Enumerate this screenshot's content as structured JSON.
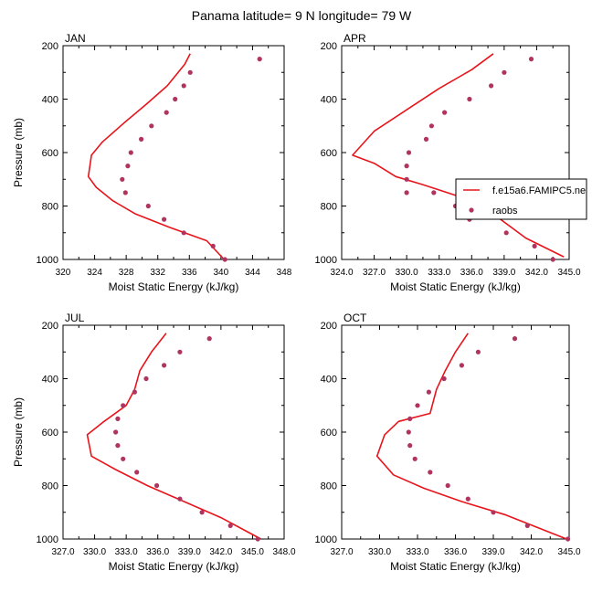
{
  "figure": {
    "title": "Panama  latitude= 9 N longitude= 79 W"
  },
  "legend": {
    "entries": [
      {
        "label": "f.e15a6.FAMIPC5.ne",
        "kind": "line",
        "color": "#e8141b"
      },
      {
        "label": "raobs",
        "kind": "marker",
        "color": "#b0345f"
      }
    ]
  },
  "chart_data": [
    {
      "type": "line",
      "panel_label": "JAN",
      "xlabel": "Moist Static Energy (kJ/kg)",
      "ylabel": "Pressure (mb)",
      "xlim": [
        320,
        348
      ],
      "ylim": [
        1000,
        200
      ],
      "y_reversed": true,
      "xticks": [
        320,
        324,
        328,
        332,
        336,
        340,
        344,
        348
      ],
      "xtick_labels": [
        "320",
        "324",
        "328",
        "332",
        "336",
        "340",
        "344",
        "348"
      ],
      "yticks": [
        200,
        400,
        600,
        800,
        1000
      ],
      "ytick_labels": [
        "200",
        "400",
        "600",
        "800",
        "1000"
      ],
      "series": [
        {
          "name": "f.e15a6.FAMIPC5.ne",
          "kind": "line",
          "color": "#e8141b",
          "x": [
            336.1,
            335.4,
            333.2,
            330.5,
            327.7,
            325.0,
            323.6,
            323.2,
            324.2,
            326.3,
            329.2,
            333.5,
            338.2,
            340.4
          ],
          "y": [
            230,
            270,
            350,
            420,
            490,
            560,
            610,
            690,
            730,
            780,
            830,
            880,
            930,
            1000
          ]
        },
        {
          "name": "raobs",
          "kind": "scatter",
          "color": "#b0345f",
          "x": [
            344.9,
            336.1,
            335.3,
            334.2,
            333.1,
            331.2,
            329.9,
            328.6,
            328.2,
            327.5,
            327.9,
            330.8,
            332.8,
            335.3,
            339.0,
            340.5
          ],
          "y": [
            250,
            300,
            350,
            400,
            450,
            500,
            550,
            600,
            650,
            700,
            750,
            800,
            850,
            900,
            950,
            1000
          ]
        }
      ]
    },
    {
      "type": "line",
      "panel_label": "APR",
      "xlabel": "Moist Static Energy (kJ/kg)",
      "ylabel": "",
      "xlim": [
        324,
        345
      ],
      "ylim": [
        1000,
        200
      ],
      "y_reversed": true,
      "xticks": [
        324,
        327,
        330,
        333,
        336,
        339,
        342,
        345
      ],
      "xtick_labels": [
        "324.0",
        "327.0",
        "330.0",
        "333.0",
        "336.0",
        "339.0",
        "342.0",
        "345.0"
      ],
      "yticks": [
        200,
        400,
        600,
        800,
        1000
      ],
      "ytick_labels": [
        "200",
        "400",
        "600",
        "800",
        "1000"
      ],
      "series": [
        {
          "name": "f.e15a6.FAMIPC5.ne",
          "kind": "line",
          "color": "#e8141b",
          "x": [
            338.0,
            336.0,
            333.0,
            330.0,
            327.0,
            325.0,
            327.0,
            329.0,
            331.5,
            334.5,
            337.0,
            341.0,
            344.5
          ],
          "y": [
            230,
            290,
            360,
            440,
            520,
            610,
            640,
            690,
            720,
            760,
            800,
            920,
            990
          ]
        },
        {
          "name": "raobs",
          "kind": "scatter",
          "color": "#b0345f",
          "x": [
            341.5,
            339.0,
            337.8,
            335.8,
            333.5,
            332.3,
            331.8,
            330.2,
            330.0,
            330.0,
            330.0,
            332.5,
            334.5,
            335.8,
            339.2,
            341.8,
            343.5
          ],
          "y": [
            250,
            300,
            350,
            400,
            450,
            500,
            550,
            600,
            650,
            700,
            750,
            750,
            800,
            850,
            900,
            950,
            1000
          ]
        }
      ]
    },
    {
      "type": "line",
      "panel_label": "JUL",
      "xlabel": "Moist Static Energy (kJ/kg)",
      "ylabel": "Pressure (mb)",
      "xlim": [
        327,
        348
      ],
      "ylim": [
        1000,
        200
      ],
      "y_reversed": true,
      "xticks": [
        327,
        330,
        333,
        336,
        339,
        342,
        345,
        348
      ],
      "xtick_labels": [
        "327.0",
        "330.0",
        "333.0",
        "336.0",
        "339.0",
        "342.0",
        "345.0",
        "348.0"
      ],
      "yticks": [
        200,
        400,
        600,
        800,
        1000
      ],
      "ytick_labels": [
        "200",
        "400",
        "600",
        "800",
        "1000"
      ],
      "series": [
        {
          "name": "f.e15a6.FAMIPC5.ne",
          "kind": "line",
          "color": "#e8141b",
          "x": [
            336.8,
            335.4,
            334.3,
            333.8,
            333.0,
            330.9,
            329.3,
            329.7,
            332.0,
            335.0,
            338.5,
            342.0,
            345.8
          ],
          "y": [
            230,
            300,
            370,
            440,
            500,
            560,
            610,
            690,
            740,
            800,
            860,
            920,
            1000
          ]
        },
        {
          "name": "raobs",
          "kind": "scatter",
          "color": "#b0345f",
          "x": [
            340.9,
            338.1,
            336.6,
            334.9,
            333.8,
            332.7,
            332.2,
            332.0,
            332.2,
            332.7,
            334.0,
            335.9,
            338.1,
            340.2,
            342.9,
            345.5
          ],
          "y": [
            250,
            300,
            350,
            400,
            450,
            500,
            550,
            600,
            650,
            700,
            750,
            800,
            850,
            900,
            950,
            1000
          ]
        }
      ]
    },
    {
      "type": "line",
      "panel_label": "OCT",
      "xlabel": "Moist Static Energy (kJ/kg)",
      "ylabel": "",
      "xlim": [
        327,
        345
      ],
      "ylim": [
        1000,
        200
      ],
      "y_reversed": true,
      "xticks": [
        327,
        330,
        333,
        336,
        339,
        342,
        345
      ],
      "xtick_labels": [
        "327.0",
        "330.0",
        "333.0",
        "336.0",
        "339.0",
        "342.0",
        "345.0"
      ],
      "yticks": [
        200,
        400,
        600,
        800,
        1000
      ],
      "ytick_labels": [
        "200",
        "400",
        "600",
        "800",
        "1000"
      ],
      "series": [
        {
          "name": "f.e15a6.FAMIPC5.ne",
          "kind": "line",
          "color": "#e8141b",
          "x": [
            337.0,
            336.0,
            335.2,
            334.5,
            334.0,
            331.5,
            330.4,
            329.8,
            331.1,
            333.5,
            336.5,
            340.0,
            344.8
          ],
          "y": [
            230,
            300,
            370,
            440,
            530,
            560,
            610,
            690,
            760,
            810,
            860,
            910,
            1000
          ]
        },
        {
          "name": "raobs",
          "kind": "scatter",
          "color": "#b0345f",
          "x": [
            340.7,
            337.8,
            336.5,
            335.1,
            333.9,
            333.0,
            332.4,
            332.3,
            332.4,
            332.8,
            334.0,
            335.4,
            337.0,
            339.0,
            341.7,
            344.9
          ],
          "y": [
            250,
            300,
            350,
            400,
            450,
            500,
            550,
            600,
            650,
            700,
            750,
            800,
            850,
            900,
            950,
            1000
          ]
        }
      ]
    }
  ]
}
